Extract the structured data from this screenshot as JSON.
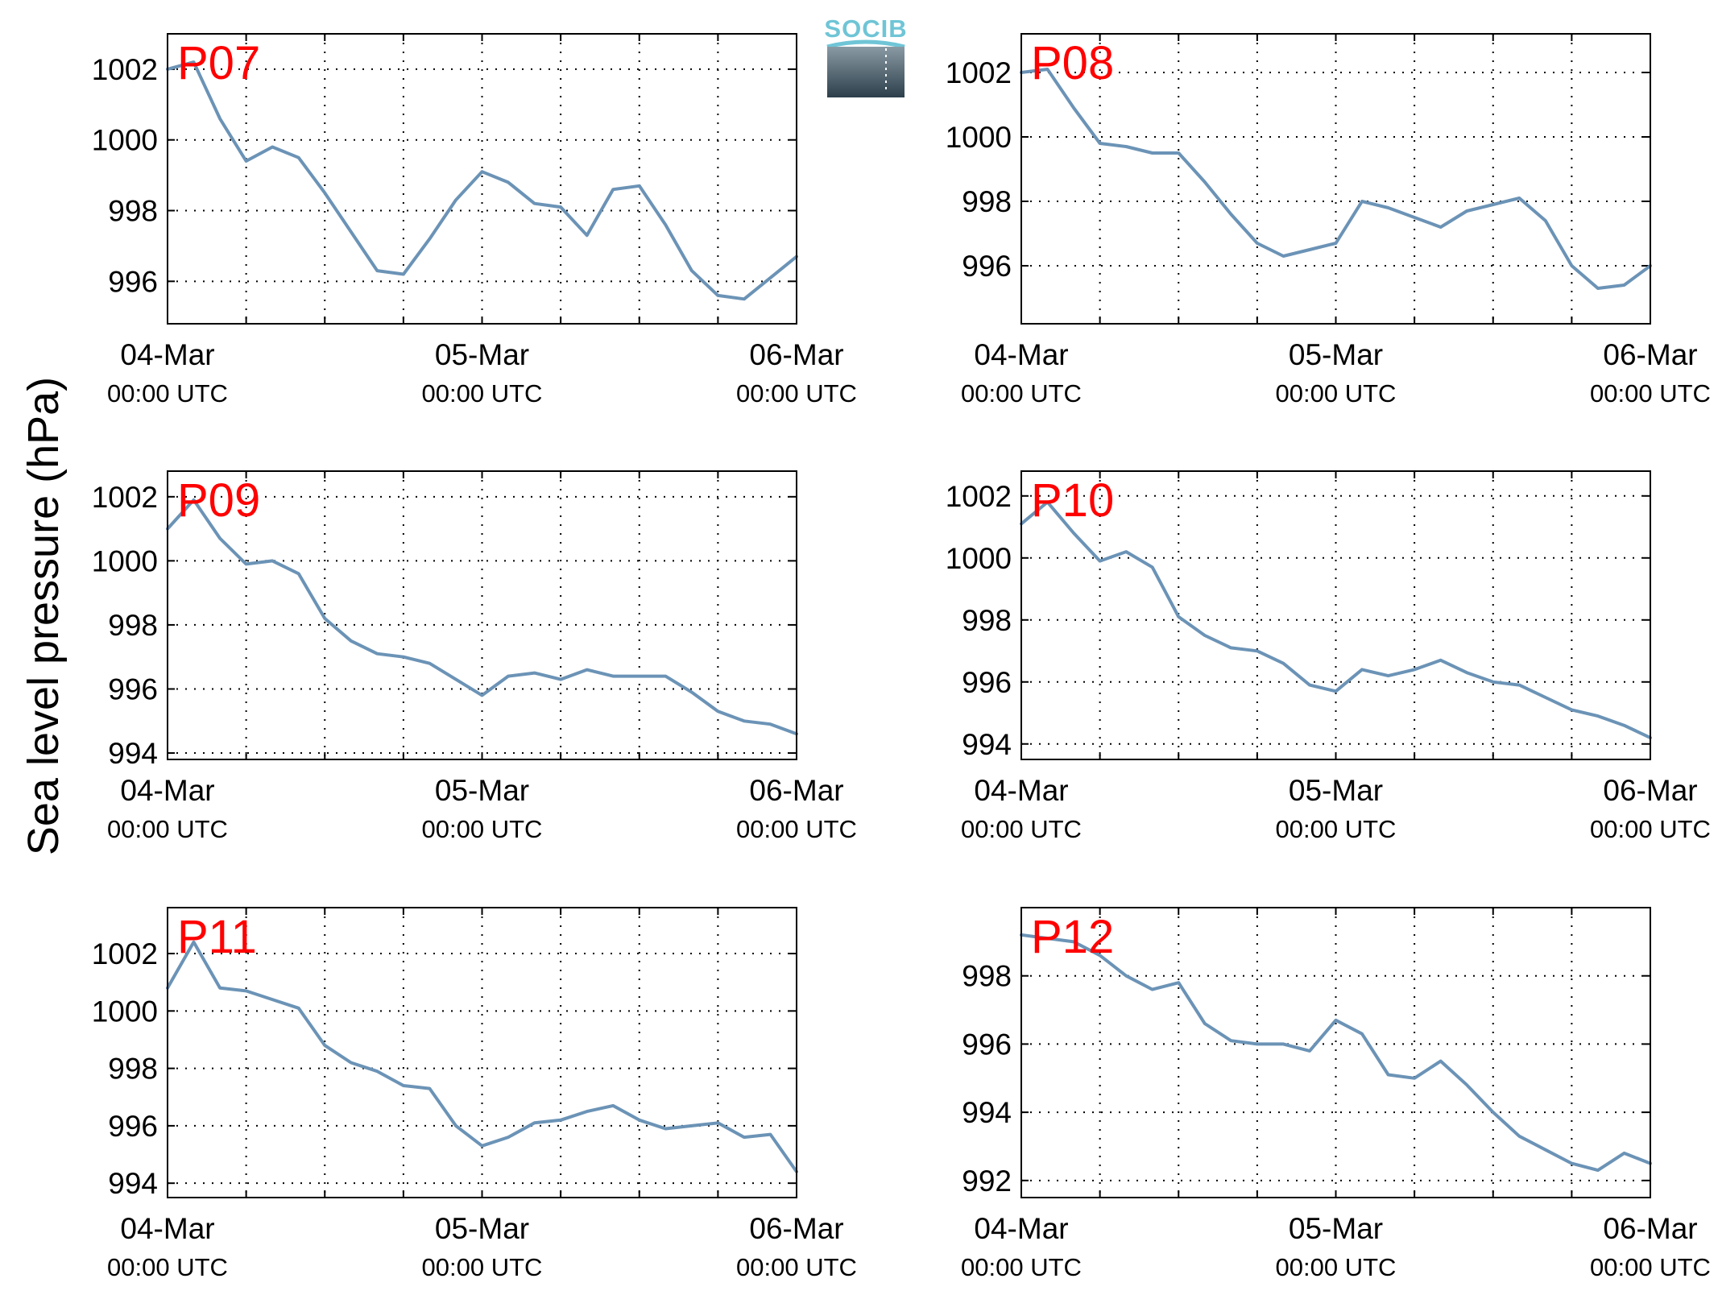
{
  "logo": {
    "text": "SOCIB"
  },
  "ylabel": "Sea level pressure (hPa)",
  "colors": {
    "series": "#6b93b6",
    "station_label": "#ff0000",
    "logo_top": "#6fc5d6",
    "logo_bottom": "#2c3f4b"
  },
  "chart_data": [
    {
      "type": "line",
      "title": "P07",
      "x_ticks": [
        {
          "date": "04-Mar",
          "time": "00:00 UTC"
        },
        {
          "date": "05-Mar",
          "time": "00:00 UTC"
        },
        {
          "date": "06-Mar",
          "time": "00:00 UTC"
        }
      ],
      "xlim": [
        "04-Mar 00:00",
        "06-Mar 00:00"
      ],
      "ylim": [
        994.8,
        1003
      ],
      "y_ticks": [
        996,
        998,
        1000,
        1002
      ],
      "grid": true,
      "series": [
        {
          "x": [
            "04-Mar 00:00",
            "04-Mar 02:00",
            "04-Mar 04:00",
            "04-Mar 06:00",
            "04-Mar 08:00",
            "04-Mar 10:00",
            "04-Mar 12:00",
            "04-Mar 14:00",
            "04-Mar 16:00",
            "04-Mar 18:00",
            "04-Mar 20:00",
            "04-Mar 22:00",
            "05-Mar 00:00",
            "05-Mar 02:00",
            "05-Mar 04:00",
            "05-Mar 06:00",
            "05-Mar 08:00",
            "05-Mar 10:00",
            "05-Mar 12:00",
            "05-Mar 14:00",
            "05-Mar 16:00",
            "05-Mar 18:00",
            "05-Mar 20:00",
            "05-Mar 22:00",
            "06-Mar 00:00"
          ],
          "y": [
            1002.0,
            1002.2,
            1000.6,
            999.4,
            999.8,
            999.5,
            998.5,
            997.4,
            996.3,
            996.2,
            997.2,
            998.3,
            999.1,
            998.8,
            998.2,
            998.1,
            997.3,
            998.6,
            998.7,
            997.6,
            996.3,
            995.6,
            995.5,
            996.1,
            996.7
          ]
        }
      ]
    },
    {
      "type": "line",
      "title": "P08",
      "x_ticks": [
        {
          "date": "04-Mar",
          "time": "00:00 UTC"
        },
        {
          "date": "05-Mar",
          "time": "00:00 UTC"
        },
        {
          "date": "06-Mar",
          "time": "00:00 UTC"
        }
      ],
      "xlim": [
        "04-Mar 00:00",
        "06-Mar 00:00"
      ],
      "ylim": [
        994.2,
        1003.2
      ],
      "y_ticks": [
        996,
        998,
        1000,
        1002
      ],
      "grid": true,
      "series": [
        {
          "x": [
            "04-Mar 00:00",
            "04-Mar 02:00",
            "04-Mar 04:00",
            "04-Mar 06:00",
            "04-Mar 08:00",
            "04-Mar 10:00",
            "04-Mar 12:00",
            "04-Mar 14:00",
            "04-Mar 16:00",
            "04-Mar 18:00",
            "04-Mar 20:00",
            "04-Mar 22:00",
            "05-Mar 00:00",
            "05-Mar 02:00",
            "05-Mar 04:00",
            "05-Mar 06:00",
            "05-Mar 08:00",
            "05-Mar 10:00",
            "05-Mar 12:00",
            "05-Mar 14:00",
            "05-Mar 16:00",
            "05-Mar 18:00",
            "05-Mar 20:00",
            "05-Mar 22:00",
            "06-Mar 00:00"
          ],
          "y": [
            1002.0,
            1002.1,
            1000.9,
            999.8,
            999.7,
            999.5,
            999.5,
            998.6,
            997.6,
            996.7,
            996.3,
            996.5,
            996.7,
            998.0,
            997.8,
            997.5,
            997.2,
            997.7,
            997.9,
            998.1,
            997.4,
            996.0,
            995.3,
            995.4,
            996.0
          ]
        }
      ]
    },
    {
      "type": "line",
      "title": "P09",
      "x_ticks": [
        {
          "date": "04-Mar",
          "time": "00:00 UTC"
        },
        {
          "date": "05-Mar",
          "time": "00:00 UTC"
        },
        {
          "date": "06-Mar",
          "time": "00:00 UTC"
        }
      ],
      "xlim": [
        "04-Mar 00:00",
        "06-Mar 00:00"
      ],
      "ylim": [
        993.8,
        1002.8
      ],
      "y_ticks": [
        994,
        996,
        998,
        1000,
        1002
      ],
      "grid": true,
      "series": [
        {
          "x": [
            "04-Mar 00:00",
            "04-Mar 02:00",
            "04-Mar 04:00",
            "04-Mar 06:00",
            "04-Mar 08:00",
            "04-Mar 10:00",
            "04-Mar 12:00",
            "04-Mar 14:00",
            "04-Mar 16:00",
            "04-Mar 18:00",
            "04-Mar 20:00",
            "04-Mar 22:00",
            "05-Mar 00:00",
            "05-Mar 02:00",
            "05-Mar 04:00",
            "05-Mar 06:00",
            "05-Mar 08:00",
            "05-Mar 10:00",
            "05-Mar 12:00",
            "05-Mar 14:00",
            "05-Mar 16:00",
            "05-Mar 18:00",
            "05-Mar 20:00",
            "05-Mar 22:00",
            "06-Mar 00:00"
          ],
          "y": [
            1001.0,
            1001.9,
            1000.7,
            999.9,
            1000.0,
            999.6,
            998.2,
            997.5,
            997.1,
            997.0,
            996.8,
            996.3,
            995.8,
            996.4,
            996.5,
            996.3,
            996.6,
            996.4,
            996.4,
            996.4,
            995.9,
            995.3,
            995.0,
            994.9,
            994.6
          ]
        }
      ]
    },
    {
      "type": "line",
      "title": "P10",
      "x_ticks": [
        {
          "date": "04-Mar",
          "time": "00:00 UTC"
        },
        {
          "date": "05-Mar",
          "time": "00:00 UTC"
        },
        {
          "date": "06-Mar",
          "time": "00:00 UTC"
        }
      ],
      "xlim": [
        "04-Mar 00:00",
        "06-Mar 00:00"
      ],
      "ylim": [
        993.5,
        1002.8
      ],
      "y_ticks": [
        994,
        996,
        998,
        1000,
        1002
      ],
      "grid": true,
      "series": [
        {
          "x": [
            "04-Mar 00:00",
            "04-Mar 02:00",
            "04-Mar 04:00",
            "04-Mar 06:00",
            "04-Mar 08:00",
            "04-Mar 10:00",
            "04-Mar 12:00",
            "04-Mar 14:00",
            "04-Mar 16:00",
            "04-Mar 18:00",
            "04-Mar 20:00",
            "04-Mar 22:00",
            "05-Mar 00:00",
            "05-Mar 02:00",
            "05-Mar 04:00",
            "05-Mar 06:00",
            "05-Mar 08:00",
            "05-Mar 10:00",
            "05-Mar 12:00",
            "05-Mar 14:00",
            "05-Mar 16:00",
            "05-Mar 18:00",
            "05-Mar 20:00",
            "05-Mar 22:00",
            "06-Mar 00:00"
          ],
          "y": [
            1001.1,
            1001.8,
            1000.8,
            999.9,
            1000.2,
            999.7,
            998.1,
            997.5,
            997.1,
            997.0,
            996.6,
            995.9,
            995.7,
            996.4,
            996.2,
            996.4,
            996.7,
            996.3,
            996.0,
            995.9,
            995.5,
            995.1,
            994.9,
            994.6,
            994.2
          ]
        }
      ]
    },
    {
      "type": "line",
      "title": "P11",
      "x_ticks": [
        {
          "date": "04-Mar",
          "time": "00:00 UTC"
        },
        {
          "date": "05-Mar",
          "time": "00:00 UTC"
        },
        {
          "date": "06-Mar",
          "time": "00:00 UTC"
        }
      ],
      "xlim": [
        "04-Mar 00:00",
        "06-Mar 00:00"
      ],
      "ylim": [
        993.5,
        1003.6
      ],
      "y_ticks": [
        994,
        996,
        998,
        1000,
        1002
      ],
      "grid": true,
      "series": [
        {
          "x": [
            "04-Mar 00:00",
            "04-Mar 02:00",
            "04-Mar 04:00",
            "04-Mar 06:00",
            "04-Mar 08:00",
            "04-Mar 10:00",
            "04-Mar 12:00",
            "04-Mar 14:00",
            "04-Mar 16:00",
            "04-Mar 18:00",
            "04-Mar 20:00",
            "04-Mar 22:00",
            "05-Mar 00:00",
            "05-Mar 02:00",
            "05-Mar 04:00",
            "05-Mar 06:00",
            "05-Mar 08:00",
            "05-Mar 10:00",
            "05-Mar 12:00",
            "05-Mar 14:00",
            "05-Mar 16:00",
            "05-Mar 18:00",
            "05-Mar 20:00",
            "05-Mar 22:00",
            "06-Mar 00:00"
          ],
          "y": [
            1000.8,
            1002.4,
            1000.8,
            1000.7,
            1000.4,
            1000.1,
            998.8,
            998.2,
            997.9,
            997.4,
            997.3,
            996.0,
            995.3,
            995.6,
            996.1,
            996.2,
            996.5,
            996.7,
            996.2,
            995.9,
            996.0,
            996.1,
            995.6,
            995.7,
            994.4
          ]
        }
      ]
    },
    {
      "type": "line",
      "title": "P12",
      "x_ticks": [
        {
          "date": "04-Mar",
          "time": "00:00 UTC"
        },
        {
          "date": "05-Mar",
          "time": "00:00 UTC"
        },
        {
          "date": "06-Mar",
          "time": "00:00 UTC"
        }
      ],
      "xlim": [
        "04-Mar 00:00",
        "06-Mar 00:00"
      ],
      "ylim": [
        991.5,
        1000
      ],
      "y_ticks": [
        992,
        994,
        996,
        998
      ],
      "grid": true,
      "series": [
        {
          "x": [
            "04-Mar 00:00",
            "04-Mar 02:00",
            "04-Mar 04:00",
            "04-Mar 06:00",
            "04-Mar 08:00",
            "04-Mar 10:00",
            "04-Mar 12:00",
            "04-Mar 14:00",
            "04-Mar 16:00",
            "04-Mar 18:00",
            "04-Mar 20:00",
            "04-Mar 22:00",
            "05-Mar 00:00",
            "05-Mar 02:00",
            "05-Mar 04:00",
            "05-Mar 06:00",
            "05-Mar 08:00",
            "05-Mar 10:00",
            "05-Mar 12:00",
            "05-Mar 14:00",
            "05-Mar 16:00",
            "05-Mar 18:00",
            "05-Mar 20:00",
            "05-Mar 22:00",
            "06-Mar 00:00"
          ],
          "y": [
            999.2,
            999.1,
            999.0,
            998.6,
            998.0,
            997.6,
            997.8,
            996.6,
            996.1,
            996.0,
            996.0,
            995.8,
            996.7,
            996.3,
            995.1,
            995.0,
            995.5,
            994.8,
            994.0,
            993.3,
            992.9,
            992.5,
            992.3,
            992.8,
            992.5
          ]
        }
      ]
    }
  ]
}
